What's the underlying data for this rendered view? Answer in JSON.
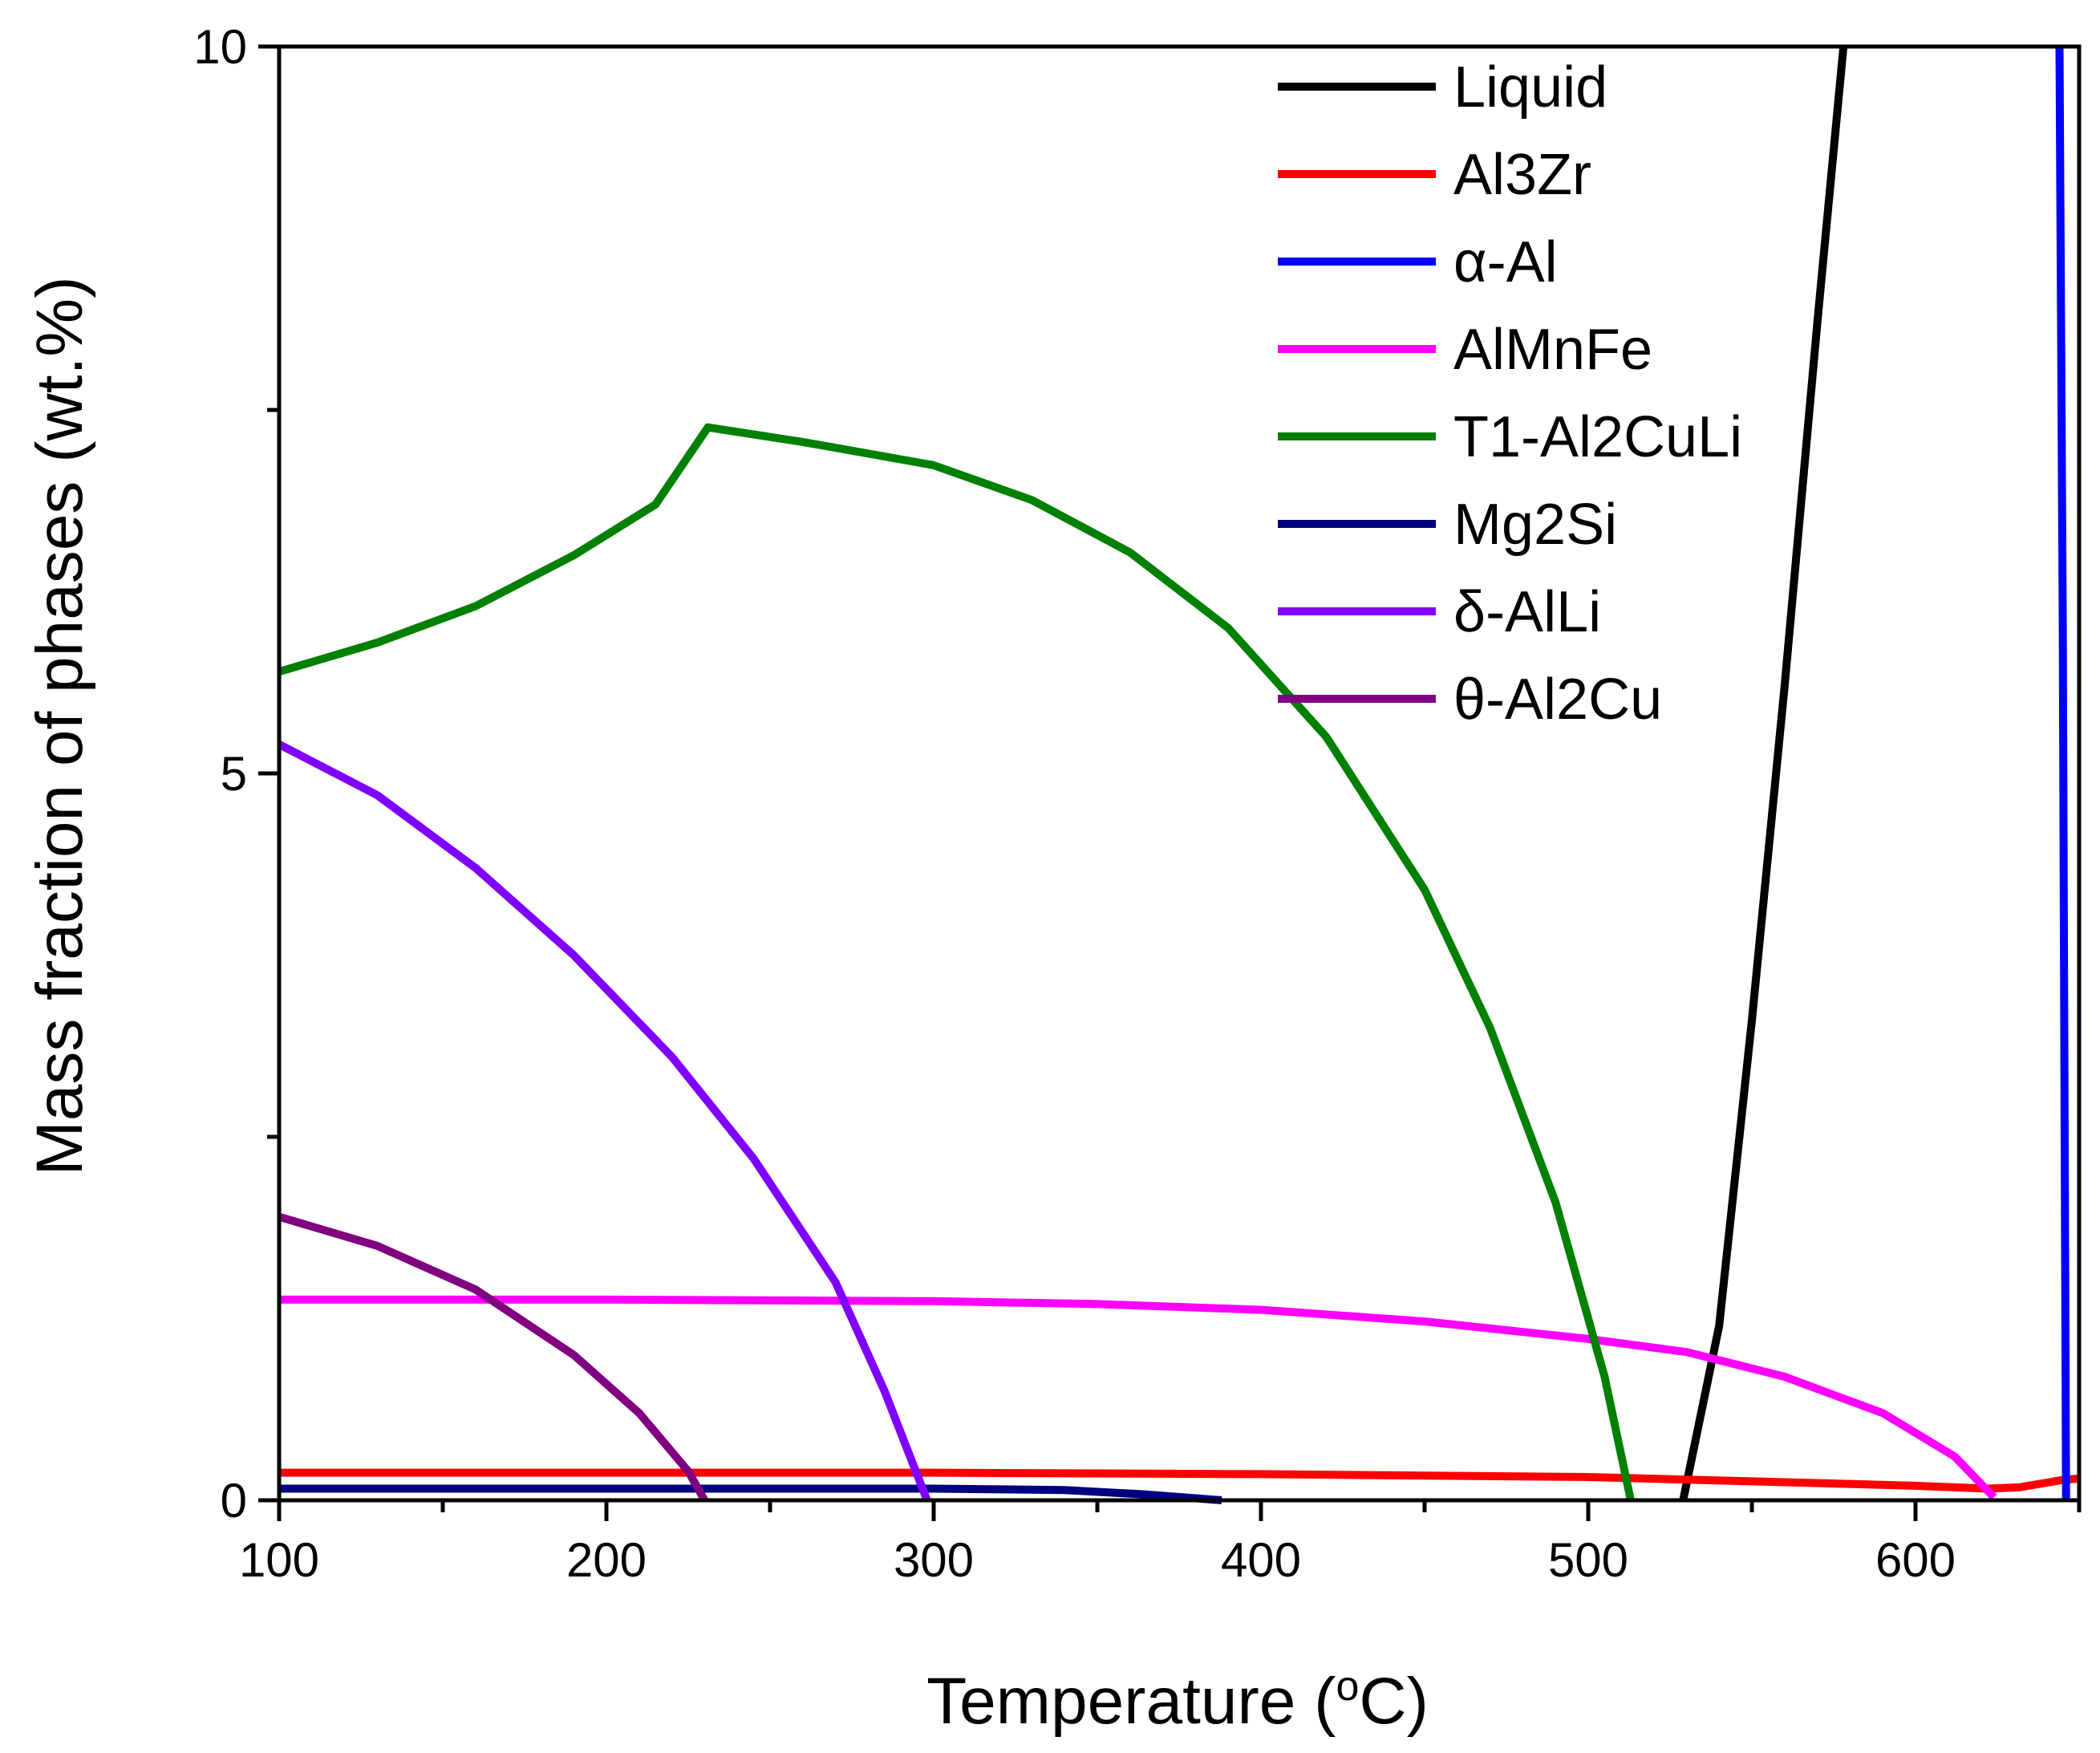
{
  "chart_data": {
    "type": "line",
    "title": "",
    "xlabel": "Temperature (",
    "xlabel_sup": "o",
    "xlabel_unit": "C)",
    "ylabel": "Mass fraction of phases (wt.%)",
    "xlim": [
      100,
      650
    ],
    "ylim": [
      0,
      10
    ],
    "x_major_ticks": [
      100,
      200,
      300,
      400,
      500,
      600
    ],
    "x_minor_ticks": [
      150,
      250,
      350,
      450,
      550,
      650
    ],
    "y_major_ticks": [
      0,
      5,
      10
    ],
    "y_minor_ticks": [
      2.5,
      7.5
    ],
    "x_tick_labels": [
      "100",
      "200",
      "300",
      "400",
      "500",
      "600"
    ],
    "y_tick_labels": [
      "0",
      "5",
      "10"
    ],
    "legend_position": "top-right",
    "series": [
      {
        "name": "Liquid",
        "color": "#000000",
        "points": [
          [
            529,
            0
          ],
          [
            540,
            1.2
          ],
          [
            550,
            3.3
          ],
          [
            560,
            5.6
          ],
          [
            570,
            8.1
          ],
          [
            578,
            10
          ]
        ]
      },
      {
        "name": "Al3Zr",
        "color": "#ff0000",
        "points": [
          [
            100,
            0.19
          ],
          [
            200,
            0.19
          ],
          [
            300,
            0.19
          ],
          [
            400,
            0.18
          ],
          [
            500,
            0.16
          ],
          [
            550,
            0.13
          ],
          [
            600,
            0.1
          ],
          [
            622,
            0.08
          ],
          [
            632,
            0.09
          ],
          [
            645,
            0.14
          ],
          [
            650,
            0.15
          ]
        ]
      },
      {
        "name": "α-Al",
        "color": "#0000ff",
        "points": [
          [
            644,
            10
          ],
          [
            645,
            6
          ],
          [
            645.5,
            3
          ],
          [
            646,
            0
          ]
        ]
      },
      {
        "name": "AlMnFe",
        "color": "#ff00ff",
        "points": [
          [
            100,
            1.38
          ],
          [
            200,
            1.38
          ],
          [
            300,
            1.37
          ],
          [
            350,
            1.35
          ],
          [
            400,
            1.31
          ],
          [
            450,
            1.23
          ],
          [
            500,
            1.11
          ],
          [
            530,
            1.02
          ],
          [
            560,
            0.85
          ],
          [
            590,
            0.6
          ],
          [
            612,
            0.3
          ],
          [
            624,
            0.02
          ]
        ]
      },
      {
        "name": "T1-Al2CuLi",
        "color": "#008000",
        "points": [
          [
            100,
            5.7
          ],
          [
            130,
            5.9
          ],
          [
            160,
            6.15
          ],
          [
            190,
            6.5
          ],
          [
            215,
            6.85
          ],
          [
            231,
            7.38
          ],
          [
            260,
            7.28
          ],
          [
            300,
            7.12
          ],
          [
            330,
            6.88
          ],
          [
            360,
            6.52
          ],
          [
            390,
            6.0
          ],
          [
            420,
            5.25
          ],
          [
            450,
            4.2
          ],
          [
            470,
            3.25
          ],
          [
            490,
            2.05
          ],
          [
            505,
            0.85
          ],
          [
            513,
            0
          ]
        ]
      },
      {
        "name": "Mg2Si",
        "color": "#000080",
        "points": [
          [
            100,
            0.08
          ],
          [
            200,
            0.08
          ],
          [
            300,
            0.08
          ],
          [
            340,
            0.07
          ],
          [
            365,
            0.04
          ],
          [
            388,
            0
          ]
        ]
      },
      {
        "name": "δ-AlLi",
        "color": "#8000ff",
        "points": [
          [
            100,
            5.2
          ],
          [
            130,
            4.85
          ],
          [
            160,
            4.35
          ],
          [
            190,
            3.75
          ],
          [
            220,
            3.05
          ],
          [
            245,
            2.35
          ],
          [
            270,
            1.5
          ],
          [
            285,
            0.75
          ],
          [
            298,
            0
          ]
        ]
      },
      {
        "name": "θ-Al2Cu",
        "color": "#800080",
        "points": [
          [
            100,
            1.95
          ],
          [
            130,
            1.75
          ],
          [
            160,
            1.45
          ],
          [
            190,
            1.0
          ],
          [
            210,
            0.6
          ],
          [
            225,
            0.2
          ],
          [
            230,
            0
          ]
        ]
      }
    ]
  }
}
